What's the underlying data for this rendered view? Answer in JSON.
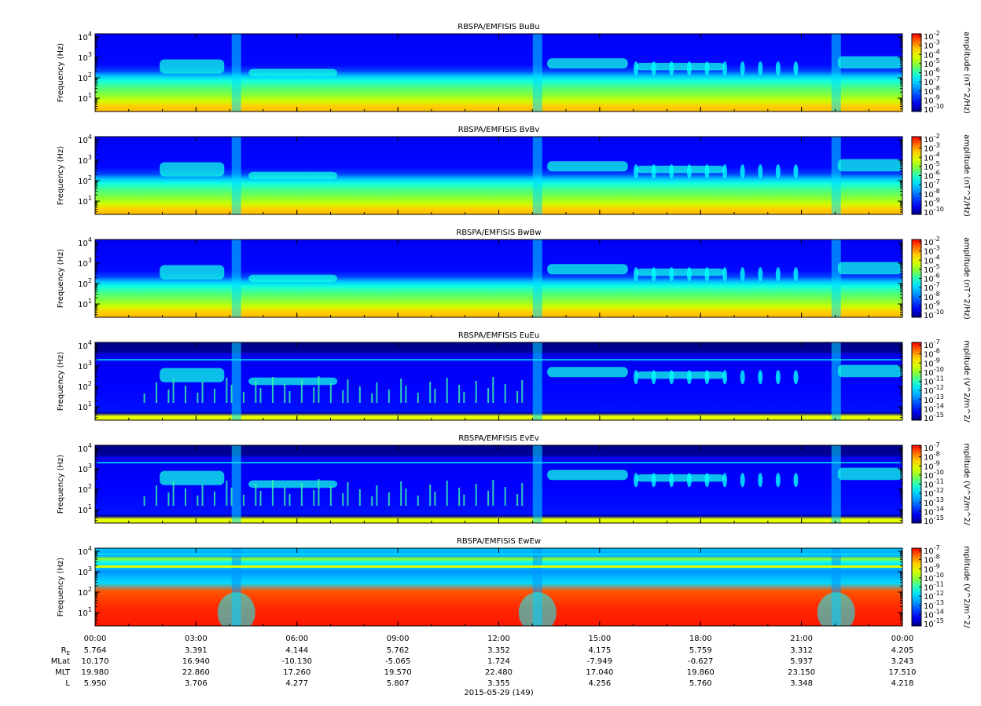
{
  "chart_data": [
    {
      "type": "heatmap",
      "title": "RBSPA/EMFISIS  BuBu",
      "ylabel": "Frequency (Hz)",
      "yscale": "log",
      "yticks": [
        {
          "base": "10",
          "exp": "1"
        },
        {
          "base": "10",
          "exp": "2"
        },
        {
          "base": "10",
          "exp": "3"
        },
        {
          "base": "10",
          "exp": "4"
        }
      ],
      "colorbar": {
        "label": "amplitude (nT^2/Hz)",
        "ticks": [
          "-2",
          "-3",
          "-4",
          "-5",
          "-6",
          "-7",
          "-8",
          "-9",
          "-10"
        ]
      },
      "x": [
        "00:00",
        "03:00",
        "06:00",
        "09:00",
        "12:00",
        "15:00",
        "18:00",
        "21:00",
        "00:00"
      ],
      "variant": "B"
    },
    {
      "type": "heatmap",
      "title": "RBSPA/EMFISIS  BvBv",
      "ylabel": "Frequency (Hz)",
      "yscale": "log",
      "yticks": [
        {
          "base": "10",
          "exp": "1"
        },
        {
          "base": "10",
          "exp": "2"
        },
        {
          "base": "10",
          "exp": "3"
        },
        {
          "base": "10",
          "exp": "4"
        }
      ],
      "colorbar": {
        "label": "amplitude (nT^2/Hz)",
        "ticks": [
          "-2",
          "-3",
          "-4",
          "-5",
          "-6",
          "-7",
          "-8",
          "-9",
          "-10"
        ]
      },
      "x": [
        "00:00",
        "03:00",
        "06:00",
        "09:00",
        "12:00",
        "15:00",
        "18:00",
        "21:00",
        "00:00"
      ],
      "variant": "B"
    },
    {
      "type": "heatmap",
      "title": "RBSPA/EMFISIS  BwBw",
      "ylabel": "Frequency (Hz)",
      "yscale": "log",
      "yticks": [
        {
          "base": "10",
          "exp": "1"
        },
        {
          "base": "10",
          "exp": "2"
        },
        {
          "base": "10",
          "exp": "3"
        },
        {
          "base": "10",
          "exp": "4"
        }
      ],
      "colorbar": {
        "label": "amplitude (nT^2/Hz)",
        "ticks": [
          "-2",
          "-3",
          "-4",
          "-5",
          "-6",
          "-7",
          "-8",
          "-9",
          "-10"
        ]
      },
      "x": [
        "00:00",
        "03:00",
        "06:00",
        "09:00",
        "12:00",
        "15:00",
        "18:00",
        "21:00",
        "00:00"
      ],
      "variant": "B"
    },
    {
      "type": "heatmap",
      "title": "RBSPA/EMFISIS  EuEu",
      "ylabel": "Frequency (Hz)",
      "yscale": "log",
      "yticks": [
        {
          "base": "10",
          "exp": "1"
        },
        {
          "base": "10",
          "exp": "2"
        },
        {
          "base": "10",
          "exp": "3"
        },
        {
          "base": "10",
          "exp": "4"
        }
      ],
      "colorbar": {
        "label": "mplitude (V^2/m^2/",
        "ticks": [
          "-7",
          "-8",
          "-9",
          "-10",
          "-11",
          "-12",
          "-13",
          "-14",
          "-15"
        ]
      },
      "x": [
        "00:00",
        "03:00",
        "06:00",
        "09:00",
        "12:00",
        "15:00",
        "18:00",
        "21:00",
        "00:00"
      ],
      "variant": "E"
    },
    {
      "type": "heatmap",
      "title": "RBSPA/EMFISIS  EvEv",
      "ylabel": "Frequency (Hz)",
      "yscale": "log",
      "yticks": [
        {
          "base": "10",
          "exp": "1"
        },
        {
          "base": "10",
          "exp": "2"
        },
        {
          "base": "10",
          "exp": "3"
        },
        {
          "base": "10",
          "exp": "4"
        }
      ],
      "colorbar": {
        "label": "mplitude (V^2/m^2/",
        "ticks": [
          "-7",
          "-8",
          "-9",
          "-10",
          "-11",
          "-12",
          "-13",
          "-14",
          "-15"
        ]
      },
      "x": [
        "00:00",
        "03:00",
        "06:00",
        "09:00",
        "12:00",
        "15:00",
        "18:00",
        "21:00",
        "00:00"
      ],
      "variant": "E"
    },
    {
      "type": "heatmap",
      "title": "RBSPA/EMFISIS  EwEw",
      "ylabel": "Frequency (Hz)",
      "yscale": "log",
      "yticks": [
        {
          "base": "10",
          "exp": "1"
        },
        {
          "base": "10",
          "exp": "2"
        },
        {
          "base": "10",
          "exp": "3"
        },
        {
          "base": "10",
          "exp": "4"
        }
      ],
      "colorbar": {
        "label": "mplitude (V^2/m^2/",
        "ticks": [
          "-7",
          "-8",
          "-9",
          "-10",
          "-11",
          "-12",
          "-13",
          "-14",
          "-15"
        ]
      },
      "x": [
        "00:00",
        "03:00",
        "06:00",
        "09:00",
        "12:00",
        "15:00",
        "18:00",
        "21:00",
        "00:00"
      ],
      "variant": "W"
    }
  ],
  "ephemeris": {
    "rows": [
      {
        "label": "R",
        "sub": "E",
        "values": [
          "5.764",
          "3.391",
          "4.144",
          "5.762",
          "3.352",
          "4.175",
          "5.759",
          "3.312",
          "4.205"
        ]
      },
      {
        "label": "MLat",
        "values": [
          "10.170",
          "16.940",
          "-10.130",
          "-5.065",
          "1.724",
          "-7.949",
          "-0.627",
          "5.937",
          "3.243"
        ]
      },
      {
        "label": "MLT",
        "values": [
          "19.980",
          "22.860",
          "17.260",
          "19.570",
          "22.480",
          "17.040",
          "19.860",
          "23.150",
          "17.510"
        ]
      },
      {
        "label": "L",
        "values": [
          "5.950",
          "3.706",
          "4.277",
          "5.807",
          "3.355",
          "4.256",
          "5.760",
          "3.348",
          "4.218"
        ]
      }
    ],
    "date": "2015-05-29 (149)"
  }
}
